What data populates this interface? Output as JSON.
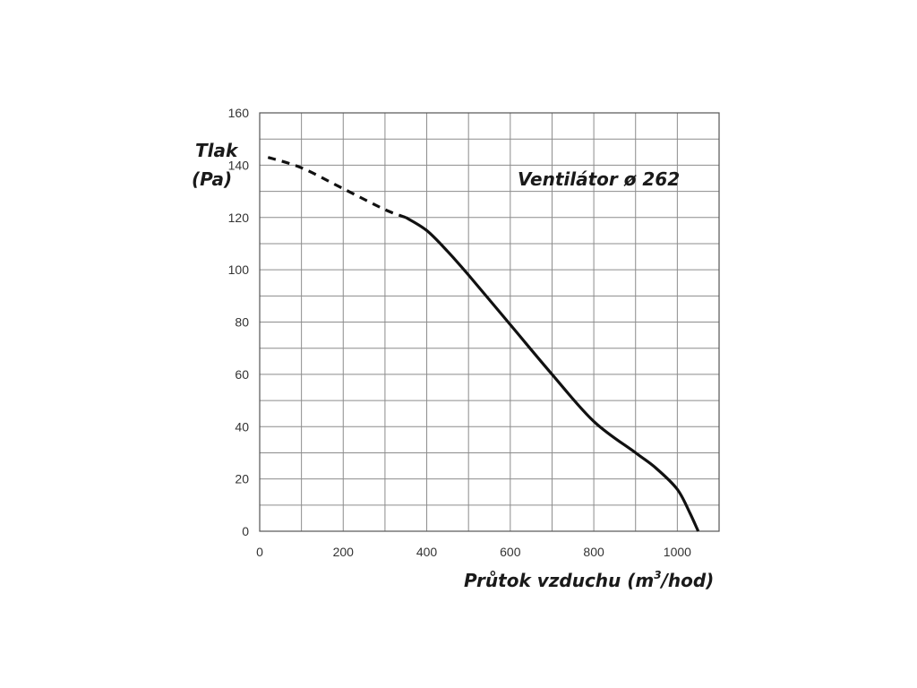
{
  "chart_data": {
    "type": "line",
    "title": "Ventilátor ø 262",
    "ylabel_line1": "Tlak",
    "ylabel_line2": "(Pa)",
    "xlabel_main": "Průtok vzduchu (m",
    "xlabel_sup": "3",
    "xlabel_tail": "/hod)",
    "xlim": [
      0,
      1100
    ],
    "ylim": [
      0,
      160
    ],
    "x_ticks": [
      0,
      200,
      400,
      600,
      800,
      1000
    ],
    "y_ticks": [
      0,
      20,
      40,
      60,
      80,
      100,
      120,
      140,
      160
    ],
    "grid": true,
    "line_color": "#111111",
    "series": [
      {
        "style": "dashed",
        "x": [
          20,
          100,
          200,
          300,
          350
        ],
        "y": [
          143,
          139,
          131,
          123,
          120
        ]
      },
      {
        "style": "solid",
        "x": [
          350,
          400,
          450,
          500,
          600,
          700,
          800,
          900,
          950,
          1000,
          1030,
          1050
        ],
        "y": [
          120,
          115,
          107,
          98,
          79,
          60,
          42,
          30,
          24,
          16,
          7,
          0
        ]
      }
    ]
  }
}
